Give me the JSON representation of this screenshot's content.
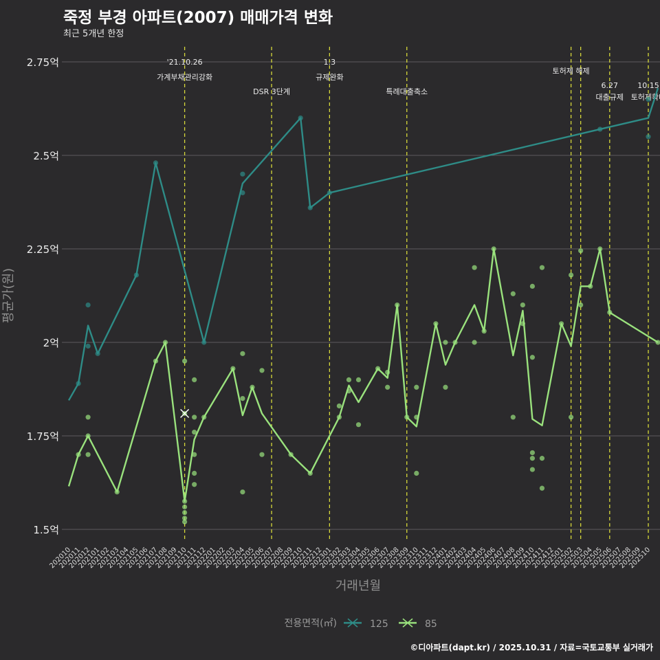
{
  "chart_data": {
    "type": "line",
    "title": "죽정 부경 아파트(2007) 매매가격 변화",
    "subtitle": "최근 5개년 한정",
    "xlabel": "거래년월",
    "ylabel": "평균가(원)",
    "y_ticks": [
      {
        "value": 1.5,
        "label": "1.5억"
      },
      {
        "value": 1.75,
        "label": "1.75억"
      },
      {
        "value": 2.0,
        "label": "2억"
      },
      {
        "value": 2.25,
        "label": "2.25억"
      },
      {
        "value": 2.5,
        "label": "2.5억"
      },
      {
        "value": 2.75,
        "label": "2.75억"
      }
    ],
    "ylim": [
      1.45,
      2.8
    ],
    "months": [
      "202010",
      "202011",
      "202012",
      "202101",
      "202102",
      "202103",
      "202104",
      "202105",
      "202106",
      "202107",
      "202108",
      "202109",
      "202110",
      "202111",
      "202112",
      "202201",
      "202202",
      "202203",
      "202204",
      "202205",
      "202206",
      "202207",
      "202208",
      "202209",
      "202210",
      "202211",
      "202212",
      "202301",
      "202302",
      "202303",
      "202304",
      "202305",
      "202306",
      "202307",
      "202308",
      "202309",
      "202310",
      "202311",
      "202312",
      "202401",
      "202402",
      "202403",
      "202404",
      "202405",
      "202406",
      "202407",
      "202408",
      "202409",
      "202410",
      "202411",
      "202412",
      "202501",
      "202502",
      "202503",
      "202504",
      "202505",
      "202506",
      "202507",
      "202508",
      "202509",
      "202510"
    ],
    "legend_title": "전용면적(㎡)",
    "series": [
      {
        "name": "125",
        "color": "#2e8c87",
        "line": [
          [
            0,
            1.845
          ],
          [
            1,
            1.89
          ],
          [
            2,
            2.045
          ],
          [
            3,
            1.97
          ],
          [
            7,
            2.18
          ],
          [
            9,
            2.48
          ],
          [
            14,
            2.0
          ],
          [
            18,
            2.425
          ],
          [
            24,
            2.6
          ],
          [
            25,
            2.36
          ],
          [
            27,
            2.4
          ],
          [
            55,
            2.57
          ],
          [
            60,
            2.6
          ],
          [
            61,
            2.68
          ]
        ],
        "points": [
          [
            1,
            1.89
          ],
          [
            2,
            2.1
          ],
          [
            2,
            1.99
          ],
          [
            3,
            1.97
          ],
          [
            7,
            2.18
          ],
          [
            9,
            2.48
          ],
          [
            14,
            2.0
          ],
          [
            18,
            2.45
          ],
          [
            18,
            2.4
          ],
          [
            24,
            2.6
          ],
          [
            25,
            2.36
          ],
          [
            27,
            2.4
          ],
          [
            55,
            2.57
          ],
          [
            60,
            2.65
          ],
          [
            60,
            2.55
          ]
        ]
      },
      {
        "name": "85",
        "color": "#9ae27d",
        "line": [
          [
            0,
            1.615
          ],
          [
            1,
            1.7
          ],
          [
            2,
            1.75
          ],
          [
            5,
            1.6
          ],
          [
            9,
            1.95
          ],
          [
            10,
            2.0
          ],
          [
            12,
            1.575
          ],
          [
            13,
            1.74
          ],
          [
            14,
            1.8
          ],
          [
            17,
            1.93
          ],
          [
            18,
            1.805
          ],
          [
            19,
            1.88
          ],
          [
            20,
            1.81
          ],
          [
            23,
            1.7
          ],
          [
            25,
            1.65
          ],
          [
            28,
            1.8
          ],
          [
            29,
            1.885
          ],
          [
            30,
            1.84
          ],
          [
            32,
            1.93
          ],
          [
            33,
            1.905
          ],
          [
            34,
            2.1
          ],
          [
            35,
            1.8
          ],
          [
            36,
            1.775
          ],
          [
            38,
            2.05
          ],
          [
            39,
            1.94
          ],
          [
            40,
            2.0
          ],
          [
            42,
            2.1
          ],
          [
            43,
            2.03
          ],
          [
            44,
            2.25
          ],
          [
            46,
            1.965
          ],
          [
            47,
            2.085
          ],
          [
            48,
            1.795
          ],
          [
            49,
            1.778
          ],
          [
            51,
            2.05
          ],
          [
            52,
            1.99
          ],
          [
            53,
            2.15
          ],
          [
            54,
            2.15
          ],
          [
            55,
            2.25
          ],
          [
            56,
            2.08
          ],
          [
            61,
            2.0
          ]
        ],
        "points": [
          [
            1,
            1.7
          ],
          [
            2,
            1.75
          ],
          [
            2,
            1.8
          ],
          [
            2,
            1.7
          ],
          [
            5,
            1.6
          ],
          [
            9,
            1.95
          ],
          [
            10,
            2.0
          ],
          [
            12,
            1.95
          ],
          [
            12,
            1.81
          ],
          [
            12,
            1.575
          ],
          [
            12,
            1.56
          ],
          [
            12,
            1.545
          ],
          [
            12,
            1.53
          ],
          [
            12,
            1.52
          ],
          [
            13,
            1.9
          ],
          [
            13,
            1.8
          ],
          [
            13,
            1.76
          ],
          [
            13,
            1.7
          ],
          [
            13,
            1.65
          ],
          [
            13,
            1.62
          ],
          [
            14,
            1.8
          ],
          [
            17,
            1.93
          ],
          [
            18,
            1.97
          ],
          [
            18,
            1.85
          ],
          [
            18,
            1.6
          ],
          [
            19,
            1.88
          ],
          [
            20,
            1.925
          ],
          [
            20,
            1.7
          ],
          [
            23,
            1.7
          ],
          [
            25,
            1.65
          ],
          [
            28,
            1.83
          ],
          [
            28,
            1.8
          ],
          [
            29,
            1.9
          ],
          [
            29,
            1.87
          ],
          [
            30,
            1.9
          ],
          [
            30,
            1.78
          ],
          [
            32,
            1.93
          ],
          [
            33,
            1.92
          ],
          [
            33,
            1.88
          ],
          [
            34,
            2.1
          ],
          [
            35,
            1.8
          ],
          [
            36,
            1.88
          ],
          [
            36,
            1.8
          ],
          [
            36,
            1.65
          ],
          [
            38,
            2.05
          ],
          [
            39,
            2.0
          ],
          [
            39,
            1.88
          ],
          [
            40,
            2.0
          ],
          [
            42,
            2.2
          ],
          [
            42,
            2.0
          ],
          [
            43,
            2.03
          ],
          [
            44,
            2.25
          ],
          [
            46,
            2.13
          ],
          [
            46,
            1.8
          ],
          [
            47,
            2.1
          ],
          [
            47,
            2.05
          ],
          [
            48,
            2.15
          ],
          [
            48,
            1.96
          ],
          [
            48,
            1.705
          ],
          [
            48,
            1.69
          ],
          [
            48,
            1.66
          ],
          [
            49,
            2.2
          ],
          [
            49,
            1.69
          ],
          [
            49,
            1.61
          ],
          [
            51,
            2.05
          ],
          [
            52,
            2.18
          ],
          [
            52,
            1.8
          ],
          [
            53,
            2.245
          ],
          [
            53,
            2.1
          ],
          [
            54,
            2.15
          ],
          [
            55,
            2.25
          ],
          [
            56,
            2.08
          ],
          [
            61,
            2.0
          ]
        ]
      }
    ],
    "events": [
      {
        "month": 12,
        "line1": "'21.10.26",
        "line2": "가계부채관리강화"
      },
      {
        "month": 21,
        "line1": "",
        "line2": "DSR 3단계"
      },
      {
        "month": 27,
        "line1": "1.3",
        "line2": "규제완화"
      },
      {
        "month": 35,
        "line1": "",
        "line2": "특례대출축소"
      },
      {
        "month": 52,
        "line1": "",
        "line2": "토허제 해제"
      },
      {
        "month": 53,
        "line1": "",
        "line2": ""
      },
      {
        "month": 56,
        "line1": "6.27",
        "line2": "대출규제"
      },
      {
        "month": 60,
        "line1": "10.15",
        "line2": "토허제확대"
      }
    ],
    "highlight": {
      "month": 12,
      "value": 1.81
    }
  },
  "caption": "©디아파트(dapt.kr) / 2025.10.31 / 자료=국토교통부 실거래가"
}
